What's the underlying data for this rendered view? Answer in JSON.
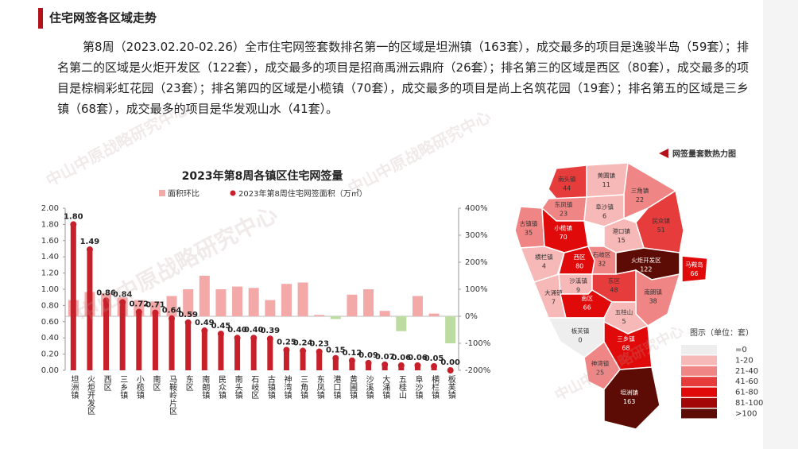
{
  "header": {
    "title": "住宅网签各区域走势"
  },
  "paragraph": "第8周（2023.02.20-02.26）全市住宅网签套数排名第一的区域是坦洲镇（163套），成交最多的项目是逸骏半岛（59套）；排名第二的区域是火炬开发区（122套），成交最多的项目是招商禹洲云鼎府（26套）；排名第三的区域是西区（80套），成交最多的项目是棕榈彩虹花园（23套）；排名第四的区域是小榄镇（70套），成交最多的项目是尚上名筑花园（19套）；排名第五的区域是三乡镇（68套），成交最多的项目是华发观山水（41套）。",
  "watermark": "中山中原战略研究中心",
  "chart_data": {
    "type": "bar",
    "title": "2023年第8周各镇区住宅网签量",
    "categories": [
      "坦洲镇",
      "火炬开发区",
      "西区",
      "三乡镇",
      "小榄镇",
      "南区",
      "马鞍岭片区",
      "东区",
      "南朗镇",
      "民众镇",
      "南头镇",
      "石岐区",
      "古镇镇",
      "神湾镇",
      "三角镇",
      "东凤镇",
      "港口镇",
      "黄圃镇",
      "沙溪镇",
      "大涌镇",
      "五桂山",
      "阜沙镇",
      "横栏镇",
      "板芙镇"
    ],
    "series": [
      {
        "name": "面积环比",
        "color": "#f4a9a9",
        "negative_color": "#bcdca2",
        "axis": "y2",
        "values": [
          60,
          90,
          85,
          70,
          60,
          55,
          75,
          100,
          150,
          100,
          110,
          105,
          60,
          120,
          125,
          5,
          -10,
          80,
          100,
          20,
          -55,
          75,
          10,
          -100
        ]
      },
      {
        "name": "2023年第8周住宅网签面积（万㎡）",
        "color": "#c8202a",
        "values": [
          1.8,
          1.49,
          0.86,
          0.84,
          0.72,
          0.71,
          0.64,
          0.59,
          0.49,
          0.45,
          0.4,
          0.4,
          0.39,
          0.25,
          0.24,
          0.23,
          0.15,
          0.12,
          0.09,
          0.07,
          0.06,
          0.06,
          0.05,
          0
        ],
        "value_labels": [
          "1.80",
          "1.49",
          "0.86",
          "0.84",
          "0.72",
          "0.71",
          "0.64",
          "0.59",
          "0.49",
          "0.45",
          "0.40",
          "0.40",
          "0.39",
          "0.25",
          "0.24",
          "0.23",
          "0.15",
          "0.12",
          "0.09",
          "0.07",
          "0.06",
          "0.06",
          "0.05",
          "0.00"
        ]
      }
    ],
    "ylim": [
      0,
      2
    ],
    "yticks": [
      {
        "value": 0,
        "label": "0.00"
      },
      {
        "value": 0.2,
        "label": "0.20"
      },
      {
        "value": 0.4,
        "label": "0.40"
      },
      {
        "value": 0.6,
        "label": "0.60"
      },
      {
        "value": 0.8,
        "label": "0.80"
      },
      {
        "value": 1,
        "label": "1.00"
      },
      {
        "value": 1.2,
        "label": "1.20"
      },
      {
        "value": 1.4,
        "label": "1.40"
      },
      {
        "value": 1.6,
        "label": "1.60"
      },
      {
        "value": 1.8,
        "label": "1.80"
      },
      {
        "value": 2,
        "label": "2.00"
      }
    ],
    "y2lim": [
      -200,
      400
    ],
    "y2ticks": [
      {
        "value": -200,
        "label": "-200%"
      },
      {
        "value": -100,
        "label": "-100%"
      },
      {
        "value": 0,
        "label": "0%"
      },
      {
        "value": 100,
        "label": "100%"
      },
      {
        "value": 200,
        "label": "200%"
      },
      {
        "value": 300,
        "label": "300%"
      },
      {
        "value": 400,
        "label": "400%"
      }
    ]
  },
  "map": {
    "title": "网签量套数热力图",
    "legend_title": "图示（单位：套）",
    "legend": [
      {
        "label": "=0",
        "color": "#eeeeee"
      },
      {
        "label": "1-20",
        "color": "#f7b8b8"
      },
      {
        "label": "21-40",
        "color": "#f08585"
      },
      {
        "label": "41-60",
        "color": "#e63c3c"
      },
      {
        "label": "61-80",
        "color": "#e00a0a"
      },
      {
        "label": "81-100",
        "color": "#a30606"
      },
      {
        "label": ">100",
        "color": "#5c0c04"
      }
    ],
    "regions": [
      {
        "name": "南头镇",
        "value": 44,
        "color": "#e63c3c"
      },
      {
        "name": "黄圃镇",
        "value": 11,
        "color": "#f7b8b8"
      },
      {
        "name": "三角镇",
        "value": 22,
        "color": "#f08585"
      },
      {
        "name": "东凤镇",
        "value": 23,
        "color": "#f08585"
      },
      {
        "name": "阜沙镇",
        "value": 6,
        "color": "#f7b8b8"
      },
      {
        "name": "古镇镇",
        "value": 35,
        "color": "#f08585"
      },
      {
        "name": "小榄镇",
        "value": 70,
        "color": "#e00a0a"
      },
      {
        "name": "民众镇",
        "value": 51,
        "color": "#e63c3c"
      },
      {
        "name": "港口镇",
        "value": 15,
        "color": "#f7b8b8"
      },
      {
        "name": "横栏镇",
        "value": 4,
        "color": "#f7b8b8"
      },
      {
        "name": "西区",
        "value": 80,
        "color": "#e00a0a"
      },
      {
        "name": "石岐区",
        "value": 32,
        "color": "#f08585"
      },
      {
        "name": "火炬开发区",
        "value": 122,
        "color": "#5c0c04"
      },
      {
        "name": "马鞍岛",
        "value": 66,
        "color": "#e00a0a"
      },
      {
        "name": "沙溪镇",
        "value": 9,
        "color": "#f7b8b8"
      },
      {
        "name": "东区",
        "value": 48,
        "color": "#e63c3c"
      },
      {
        "name": "大涌镇",
        "value": 7,
        "color": "#f7b8b8"
      },
      {
        "name": "南区",
        "value": 66,
        "color": "#e00a0a"
      },
      {
        "name": "南朗镇",
        "value": 38,
        "color": "#f08585"
      },
      {
        "name": "五桂山",
        "value": 5,
        "color": "#f7b8b8"
      },
      {
        "name": "板芙镇",
        "value": 0,
        "color": "#eeeeee"
      },
      {
        "name": "三乡镇",
        "value": 68,
        "color": "#e00a0a"
      },
      {
        "name": "神湾镇",
        "value": 25,
        "color": "#f08585"
      },
      {
        "name": "坦洲镇",
        "value": 163,
        "color": "#5c0c04"
      }
    ]
  }
}
